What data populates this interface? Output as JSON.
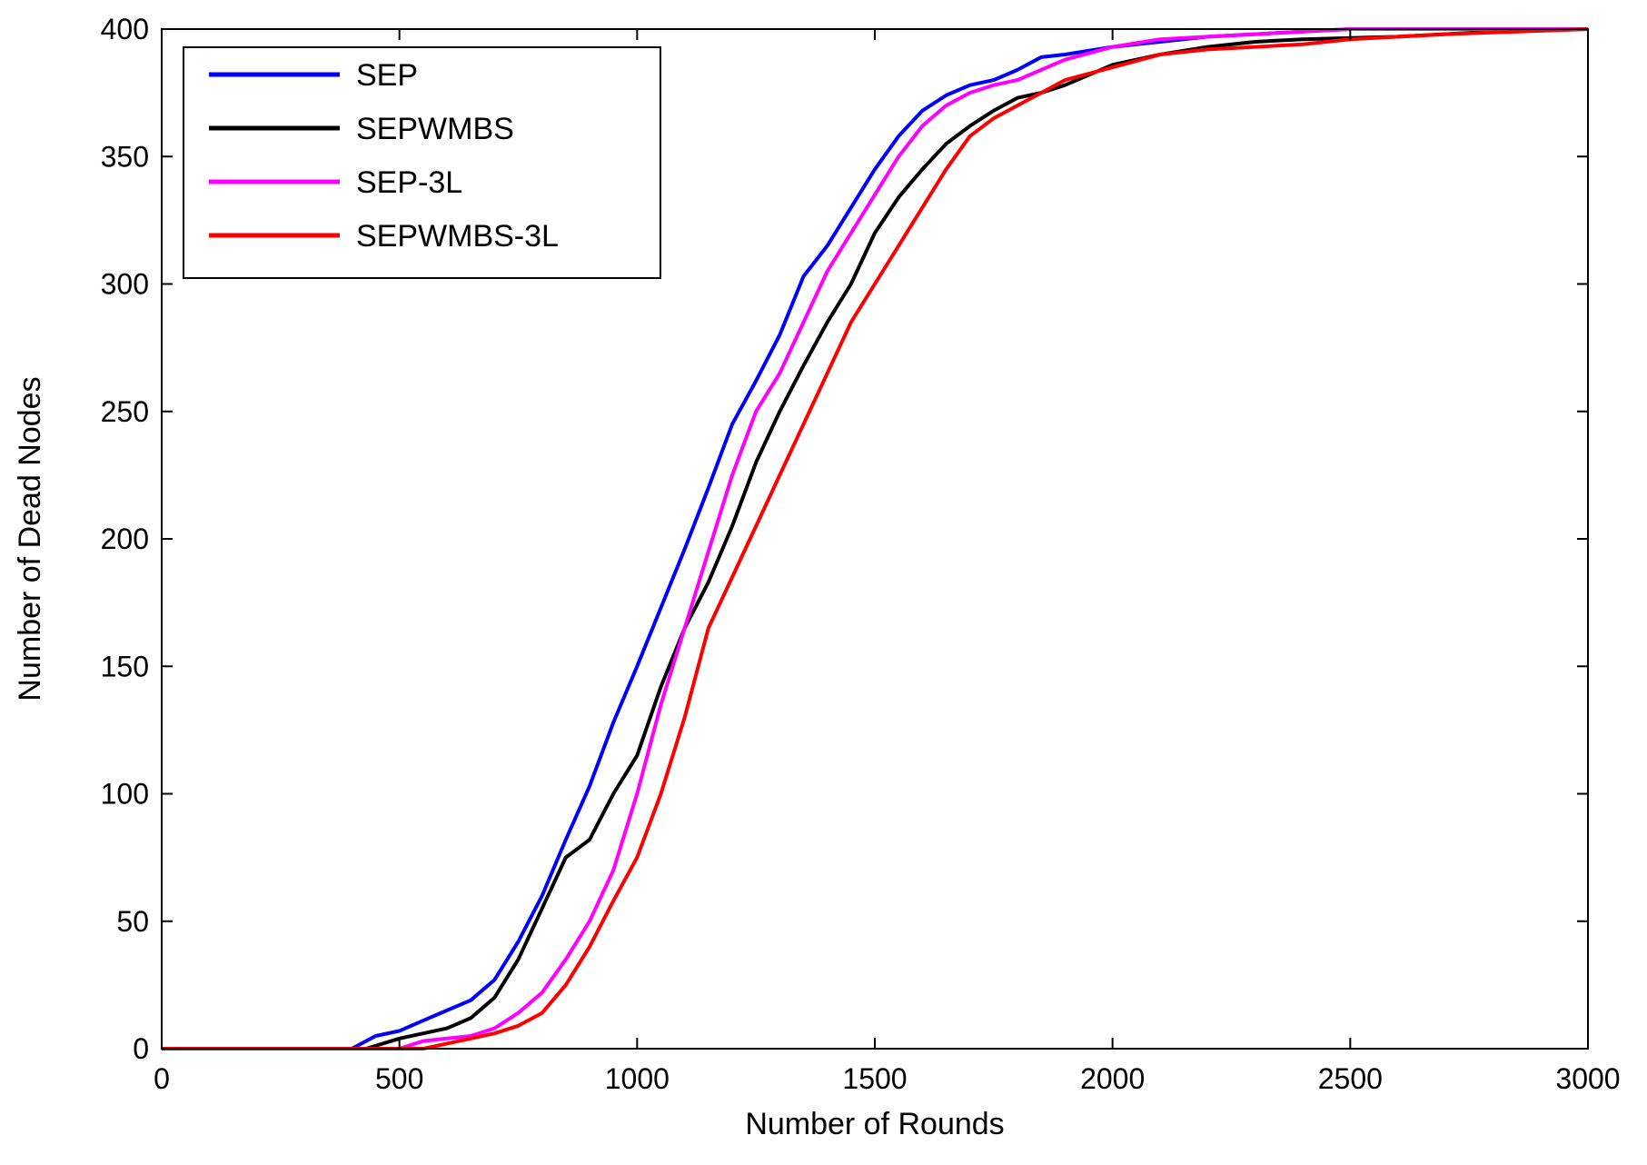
{
  "chart_data": {
    "type": "line",
    "title": "",
    "xlabel": "Number of Rounds",
    "ylabel": "Number of Dead Nodes",
    "xlim": [
      0,
      3000
    ],
    "ylim": [
      0,
      400
    ],
    "xticks": [
      "0",
      "500",
      "1000",
      "1500",
      "2000",
      "2500",
      "3000"
    ],
    "yticks": [
      "0",
      "50",
      "100",
      "150",
      "200",
      "250",
      "300",
      "350",
      "400"
    ],
    "grid": false,
    "legend_position": "top-left",
    "series": [
      {
        "name": "SEP",
        "color": "#0000ff",
        "x": [
          0,
          400,
          450,
          500,
          550,
          600,
          650,
          700,
          750,
          800,
          850,
          900,
          950,
          1000,
          1050,
          1100,
          1150,
          1200,
          1250,
          1300,
          1350,
          1400,
          1450,
          1500,
          1550,
          1600,
          1650,
          1700,
          1750,
          1800,
          1850,
          1900,
          2000,
          2100,
          2200,
          2300,
          2400,
          2500,
          3000
        ],
        "y": [
          0,
          0,
          5,
          7,
          11,
          15,
          19,
          27,
          42,
          60,
          82,
          103,
          128,
          150,
          173,
          196,
          220,
          245,
          262,
          280,
          303,
          315,
          330,
          345,
          358,
          368,
          374,
          378,
          380,
          384,
          389,
          390,
          393,
          395,
          397,
          398,
          399,
          400,
          400
        ]
      },
      {
        "name": "SEPWMBS",
        "color": "#000000",
        "x": [
          0,
          430,
          500,
          550,
          600,
          650,
          700,
          750,
          800,
          850,
          900,
          950,
          1000,
          1050,
          1100,
          1150,
          1200,
          1250,
          1300,
          1350,
          1400,
          1450,
          1500,
          1550,
          1600,
          1650,
          1700,
          1750,
          1800,
          1850,
          1900,
          2000,
          2100,
          2200,
          2300,
          2400,
          2600,
          2800,
          3000
        ],
        "y": [
          0,
          0,
          4,
          6,
          8,
          12,
          20,
          35,
          55,
          75,
          82,
          100,
          115,
          142,
          165,
          183,
          205,
          230,
          250,
          268,
          285,
          300,
          320,
          334,
          345,
          355,
          362,
          368,
          373,
          375,
          378,
          386,
          390,
          393,
          395,
          396,
          397,
          399,
          400
        ]
      },
      {
        "name": "SEP-3L",
        "color": "#ff00ff",
        "x": [
          0,
          500,
          550,
          600,
          650,
          700,
          750,
          800,
          850,
          900,
          950,
          1000,
          1050,
          1100,
          1150,
          1200,
          1250,
          1300,
          1350,
          1400,
          1450,
          1500,
          1550,
          1600,
          1650,
          1700,
          1750,
          1800,
          1850,
          1900,
          2000,
          2100,
          2200,
          2300,
          2400,
          2500,
          3000
        ],
        "y": [
          0,
          0,
          3,
          4,
          5,
          8,
          14,
          22,
          35,
          50,
          70,
          100,
          135,
          165,
          195,
          225,
          250,
          265,
          285,
          305,
          320,
          335,
          350,
          362,
          370,
          375,
          378,
          380,
          384,
          388,
          393,
          396,
          397,
          398,
          399,
          400,
          400
        ]
      },
      {
        "name": "SEPWMBS-3L",
        "color": "#ff0000",
        "x": [
          0,
          550,
          600,
          650,
          700,
          750,
          800,
          850,
          900,
          950,
          1000,
          1050,
          1100,
          1150,
          1200,
          1250,
          1300,
          1350,
          1400,
          1450,
          1500,
          1550,
          1600,
          1650,
          1700,
          1750,
          1800,
          1850,
          1900,
          2000,
          2100,
          2200,
          2300,
          2400,
          2500,
          2600,
          2700,
          3000
        ],
        "y": [
          0,
          0,
          2,
          4,
          6,
          9,
          14,
          25,
          40,
          58,
          75,
          100,
          130,
          165,
          185,
          205,
          225,
          245,
          265,
          285,
          300,
          315,
          330,
          345,
          358,
          365,
          370,
          375,
          380,
          385,
          390,
          392,
          393,
          394,
          396,
          397,
          398,
          400
        ]
      }
    ]
  }
}
